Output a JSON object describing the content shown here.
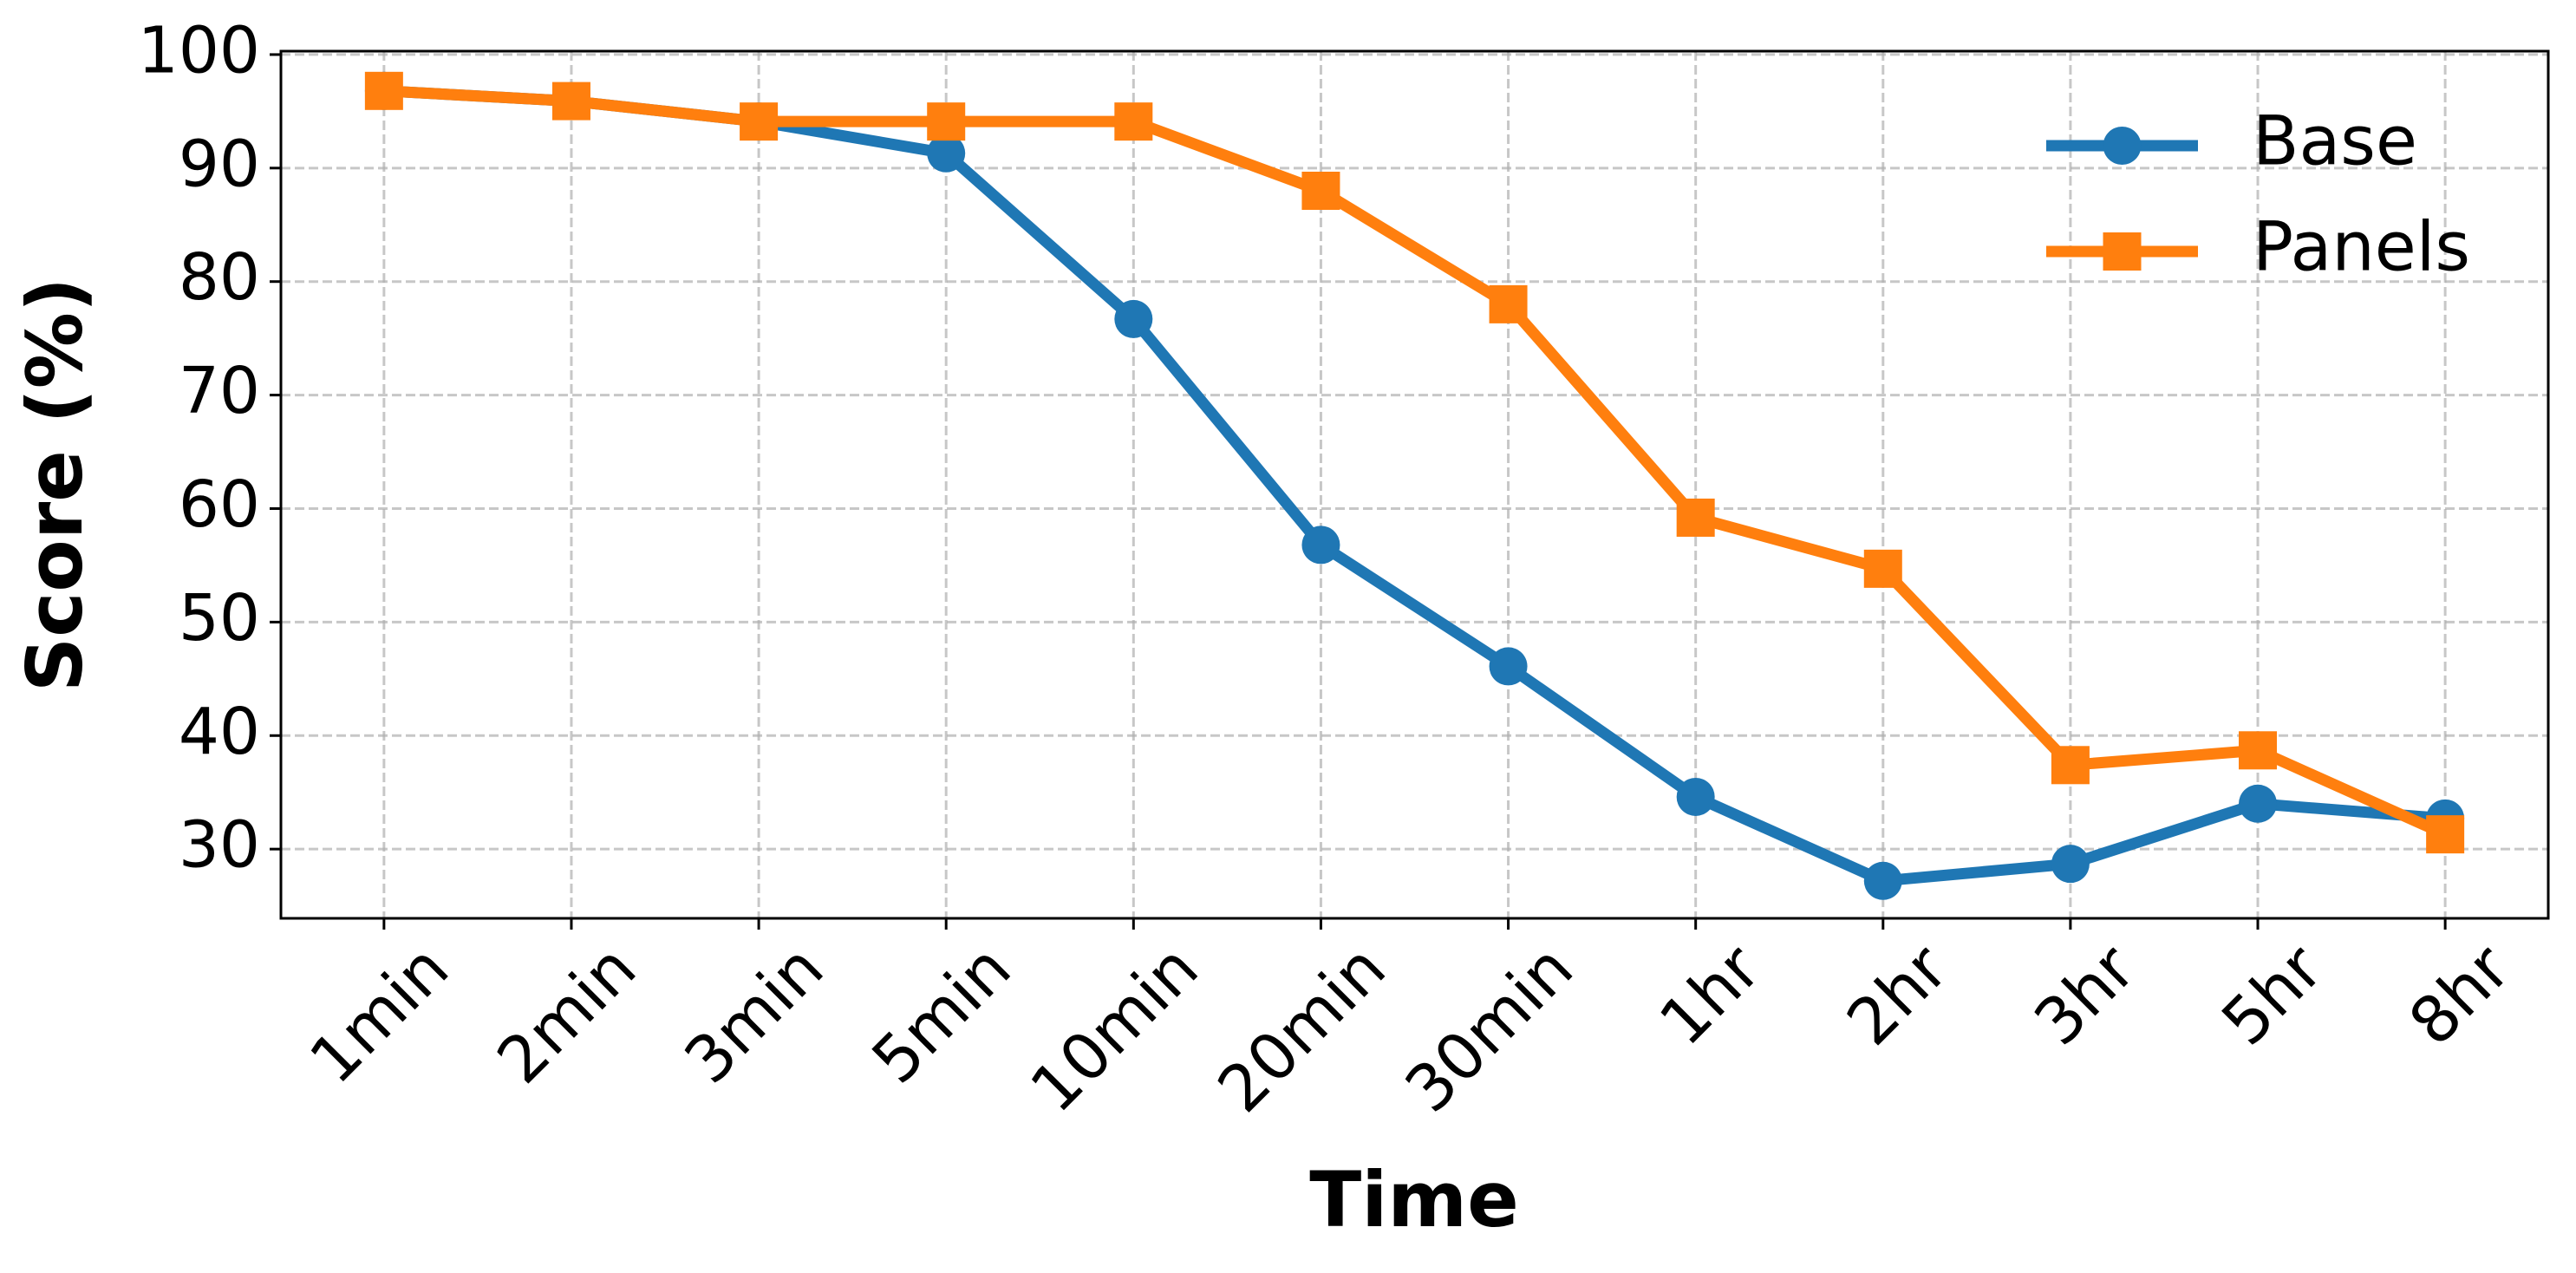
{
  "chart_data": {
    "type": "line",
    "xlabel": "Time",
    "ylabel": "Score (%)",
    "categories": [
      "1min",
      "2min",
      "3min",
      "5min",
      "10min",
      "20min",
      "30min",
      "1hr",
      "2hr",
      "3hr",
      "5hr",
      "8hr"
    ],
    "series": [
      {
        "name": "Base",
        "color": "#1f77b4",
        "marker": "circle",
        "values": [
          96.8,
          95.9,
          94.1,
          91.3,
          76.7,
          56.8,
          46.1,
          34.6,
          27.2,
          28.7,
          34.0,
          32.7
        ]
      },
      {
        "name": "Panels",
        "color": "#ff7f0e",
        "marker": "square",
        "values": [
          96.8,
          95.9,
          94.1,
          94.1,
          94.1,
          88.0,
          78.0,
          59.2,
          54.7,
          37.4,
          38.7,
          31.3
        ]
      }
    ],
    "ylim": [
      23.9,
      100.3
    ],
    "yticks": [
      30,
      40,
      50,
      60,
      70,
      80,
      90,
      100
    ],
    "grid": true,
    "legend": "upper right"
  }
}
